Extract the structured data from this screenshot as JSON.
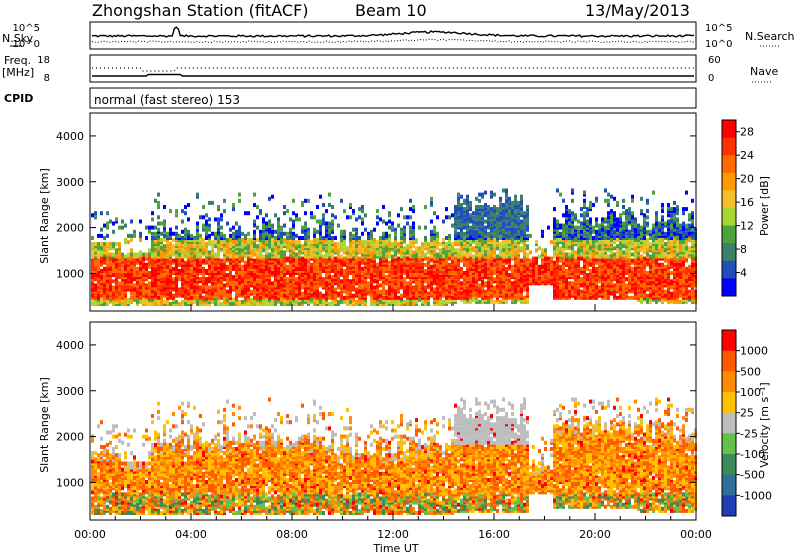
{
  "header": {
    "station": "Zhongshan Station (fitACF)",
    "beam": "Beam 10",
    "date": "13/May/2013"
  },
  "top_panels": {
    "nsky_label": "N.Sky",
    "nsearch_label": "N.Search",
    "nsky_ticks": [
      "10^5",
      "10^0"
    ],
    "nsearch_ticks": [
      "10^5",
      "10^0"
    ],
    "freq_label_1": "Freq.",
    "freq_label_2": "[MHz]",
    "freq_ticks": [
      "18",
      "8"
    ],
    "nave_label": "Nave",
    "nave_ticks": [
      "60",
      "0"
    ],
    "cpid_label": "CPID",
    "cpid_text": "normal (fast stereo) 153"
  },
  "chart_data": [
    {
      "type": "heatmap",
      "name": "power",
      "ylabel": "Slant Range [km]",
      "yticks": [
        "4000",
        "3000",
        "2000",
        "1000"
      ],
      "ylim": [
        180,
        4500
      ],
      "xlim": [
        0,
        24
      ],
      "colorbar": {
        "label": "Power [dB]",
        "ticks": [
          "28",
          "24",
          "20",
          "16",
          "12",
          "8",
          "4"
        ],
        "range": [
          0,
          30
        ],
        "colors": [
          "#0000ff",
          "#1f4fb8",
          "#3c7f6a",
          "#4ca23c",
          "#a6d534",
          "#f5c12b",
          "#ff9900",
          "#ff6a00",
          "#ff3300",
          "#ff0000"
        ]
      }
    },
    {
      "type": "heatmap",
      "name": "velocity",
      "ylabel": "Slant Range [km]",
      "yticks": [
        "4000",
        "3000",
        "2000",
        "1000"
      ],
      "ylim": [
        180,
        4500
      ],
      "xlim": [
        0,
        24
      ],
      "colorbar": {
        "label": "Velocity [m s⁻¹]",
        "ticks": [
          "1000",
          "500",
          "100",
          "25",
          "-25",
          "-100",
          "-500",
          "-1000"
        ],
        "colors": [
          "#1f3fb5",
          "#2f6f9a",
          "#3c8a5a",
          "#64c04a",
          "#bdbdbd",
          "#ffc000",
          "#ff8c00",
          "#ff5a00",
          "#ff0000"
        ]
      }
    }
  ],
  "x_axis": {
    "ticks": [
      "00:00",
      "04:00",
      "08:00",
      "12:00",
      "16:00",
      "20:00",
      "00:00"
    ],
    "label": "Time UT"
  }
}
